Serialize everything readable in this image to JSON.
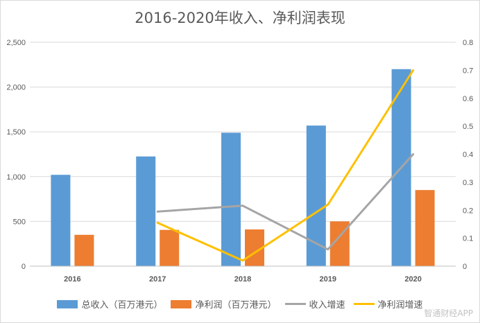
{
  "chart_data": {
    "type": "bar",
    "title": "2016-2020年收入、净利润表现",
    "categories": [
      "2016",
      "2017",
      "2018",
      "2019",
      "2020"
    ],
    "series": [
      {
        "name": "总收入（百万港元）",
        "type": "bar",
        "axis": "left",
        "color": "#5b9bd5",
        "values": [
          1020,
          1225,
          1490,
          1570,
          2200
        ]
      },
      {
        "name": "净利润（百万港元）",
        "type": "bar",
        "axis": "left",
        "color": "#ed7d31",
        "values": [
          350,
          405,
          410,
          500,
          850
        ]
      },
      {
        "name": "收入增速",
        "type": "line",
        "axis": "right",
        "color": "#a5a5a5",
        "values": [
          null,
          0.195,
          0.216,
          0.06,
          0.4
        ]
      },
      {
        "name": "净利润增速",
        "type": "line",
        "axis": "right",
        "color": "#ffc000",
        "values": [
          null,
          0.155,
          0.02,
          0.22,
          0.7
        ]
      }
    ],
    "y_left": {
      "min": 0,
      "max": 2500,
      "ticks": [
        "0",
        "500",
        "1,000",
        "1,500",
        "2,000",
        "2,500"
      ]
    },
    "y_right": {
      "min": 0,
      "max": 0.8,
      "ticks": [
        "0",
        "0.1",
        "0.2",
        "0.3",
        "0.4",
        "0.5",
        "0.6",
        "0.7",
        "0.8"
      ]
    },
    "grid": true,
    "legend": "bottom"
  },
  "watermark": "智通财经APP"
}
